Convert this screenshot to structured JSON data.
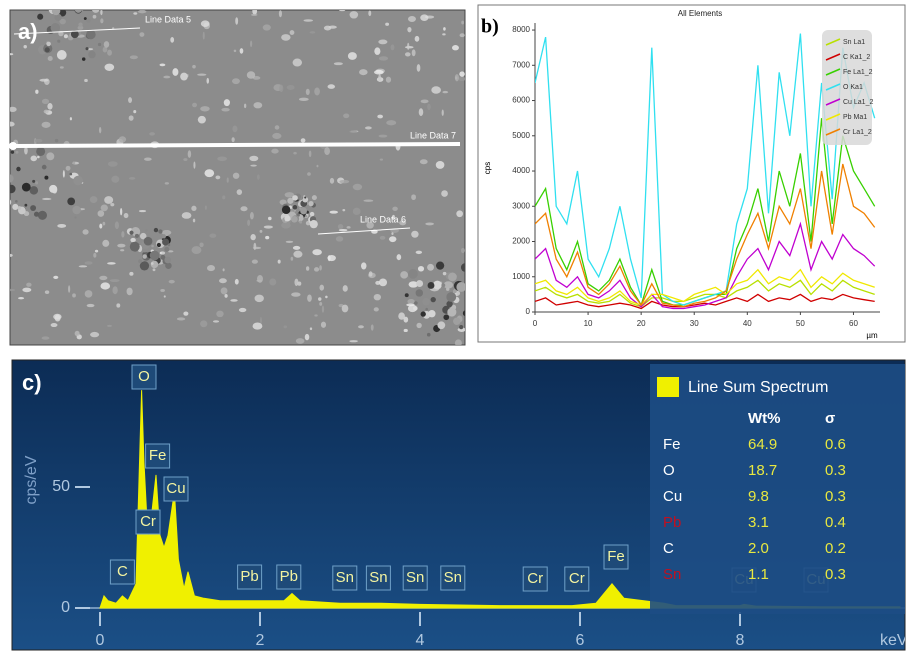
{
  "image_panel": {
    "label": "a)",
    "lines": [
      "Line Data 5",
      "Line Data 7",
      "Line Data 6"
    ]
  },
  "chart_data": [
    {
      "type": "line",
      "panel_label": "b)",
      "title": "All Elements",
      "y_label": "cps",
      "x_label": "µm",
      "x": [
        0,
        2,
        4,
        6,
        8,
        10,
        12,
        14,
        16,
        18,
        20,
        22,
        24,
        26,
        28,
        30,
        32,
        34,
        36,
        38,
        40,
        42,
        44,
        46,
        48,
        50,
        52,
        54,
        56,
        58,
        60,
        62,
        64
      ],
      "xlim": [
        0,
        65
      ],
      "xticks": [
        0,
        10,
        20,
        30,
        40,
        50,
        60
      ],
      "ylim": [
        0,
        8200
      ],
      "yticks": [
        0,
        1000,
        2000,
        3000,
        4000,
        5000,
        6000,
        7000,
        8000
      ],
      "series": [
        {
          "name": "Sn La1",
          "color": "#b8e000",
          "values": [
            600,
            700,
            500,
            400,
            500,
            300,
            250,
            300,
            500,
            250,
            150,
            400,
            400,
            300,
            300,
            400,
            500,
            500,
            400,
            600,
            700,
            900,
            600,
            800,
            700,
            900,
            500,
            800,
            600,
            900,
            700,
            600,
            500
          ]
        },
        {
          "name": "C Ka1_2",
          "color": "#d00000",
          "values": [
            300,
            400,
            200,
            250,
            300,
            200,
            150,
            200,
            250,
            200,
            100,
            300,
            200,
            150,
            150,
            200,
            250,
            200,
            300,
            400,
            300,
            500,
            300,
            400,
            350,
            500,
            300,
            400,
            350,
            500,
            400,
            350,
            300
          ]
        },
        {
          "name": "Fe La1_2",
          "color": "#38d000",
          "values": [
            3000,
            3500,
            1800,
            1200,
            2000,
            800,
            600,
            900,
            1500,
            700,
            200,
            1200,
            300,
            200,
            200,
            300,
            400,
            500,
            500,
            1800,
            2500,
            3500,
            2000,
            4000,
            3000,
            4500,
            2000,
            5500,
            2500,
            5000,
            4000,
            3500,
            3000
          ]
        },
        {
          "name": "O Ka1",
          "color": "#30e0f0",
          "values": [
            6500,
            7800,
            3000,
            2500,
            4000,
            1500,
            1000,
            1800,
            3000,
            1500,
            400,
            7500,
            500,
            300,
            200,
            300,
            400,
            500,
            600,
            2500,
            3500,
            7000,
            2800,
            6800,
            5000,
            7900,
            3000,
            6500,
            3200,
            7500,
            5800,
            6500,
            5500
          ]
        },
        {
          "name": "Cu La1_2",
          "color": "#c000d0",
          "values": [
            1500,
            1800,
            900,
            700,
            1000,
            500,
            400,
            600,
            900,
            400,
            150,
            500,
            150,
            100,
            100,
            150,
            200,
            300,
            400,
            1000,
            1500,
            1800,
            1200,
            2000,
            1600,
            2500,
            1200,
            2000,
            1500,
            2200,
            1800,
            1600,
            1300
          ]
        },
        {
          "name": "Pb Ma1",
          "color": "#f0e800",
          "values": [
            800,
            900,
            600,
            500,
            700,
            400,
            300,
            400,
            600,
            300,
            200,
            500,
            500,
            400,
            300,
            500,
            600,
            700,
            500,
            800,
            900,
            1200,
            800,
            1000,
            900,
            1200,
            700,
            1000,
            800,
            1100,
            900,
            800,
            700
          ]
        },
        {
          "name": "Cr La1_2",
          "color": "#f08000",
          "values": [
            2500,
            2800,
            1500,
            1000,
            1700,
            700,
            500,
            800,
            1300,
            600,
            200,
            800,
            250,
            200,
            150,
            250,
            300,
            400,
            600,
            1500,
            2200,
            2800,
            1800,
            3000,
            2500,
            3500,
            1800,
            4000,
            2200,
            4200,
            3000,
            2800,
            2400
          ]
        }
      ]
    },
    {
      "type": "area",
      "panel_label": "c)",
      "y_label": "cps/eV",
      "x_label": "keV",
      "color": "#f0f000",
      "x": [
        0,
        0.05,
        0.1,
        0.2,
        0.28,
        0.35,
        0.45,
        0.52,
        0.55,
        0.6,
        0.65,
        0.7,
        0.75,
        0.8,
        0.85,
        0.93,
        0.98,
        1.05,
        1.1,
        1.18,
        1.3,
        1.5,
        1.8,
        2.3,
        2.4,
        2.5,
        3,
        3.5,
        4,
        5,
        5.4,
        5.9,
        6.2,
        6.4,
        6.55,
        7.05,
        7.2,
        8,
        8.05,
        8.2,
        9,
        10
      ],
      "values": [
        0,
        5,
        3,
        2,
        5,
        3,
        10,
        90,
        60,
        28,
        40,
        55,
        30,
        25,
        30,
        48,
        20,
        8,
        15,
        5,
        4,
        3,
        3,
        3,
        6,
        3,
        2,
        2,
        1.5,
        1,
        1,
        1,
        2,
        10,
        4,
        2,
        1,
        1,
        1.5,
        0.8,
        0.5,
        0.5
      ],
      "xlim": [
        0,
        10
      ],
      "xticks": [
        0,
        2,
        4,
        6,
        8
      ],
      "ylim": [
        0,
        100
      ],
      "yticks": [
        0,
        50
      ],
      "annotations": [
        {
          "text": "O",
          "x": 0.55
        },
        {
          "text": "Fe",
          "x": 0.72
        },
        {
          "text": "Cu",
          "x": 0.95
        },
        {
          "text": "Cr",
          "x": 0.6
        },
        {
          "text": "C",
          "x": 0.28
        },
        {
          "text": "Pb",
          "x": 1.87
        },
        {
          "text": "Pb",
          "x": 2.36
        },
        {
          "text": "Sn",
          "x": 3.06
        },
        {
          "text": "Sn",
          "x": 3.48
        },
        {
          "text": "Sn",
          "x": 3.94
        },
        {
          "text": "Sn",
          "x": 4.41
        },
        {
          "text": "Cr",
          "x": 5.44
        },
        {
          "text": "Cr",
          "x": 5.96
        },
        {
          "text": "Fe",
          "x": 6.45
        },
        {
          "text": "Cu",
          "x": 8.05
        },
        {
          "text": "Cu",
          "x": 8.95
        }
      ]
    }
  ],
  "table": {
    "title": "Line Sum Spectrum",
    "legend_color": "#f0f000",
    "header": [
      "Wt%",
      "σ"
    ],
    "rows": [
      {
        "element": "Fe",
        "wt": "64.9",
        "sigma": "0.6",
        "color": "#ffffff"
      },
      {
        "element": "O",
        "wt": "18.7",
        "sigma": "0.3",
        "color": "#ffffff"
      },
      {
        "element": "Cu",
        "wt": "9.8",
        "sigma": "0.3",
        "color": "#ffffff"
      },
      {
        "element": "Pb",
        "wt": "3.1",
        "sigma": "0.4",
        "color": "#c01020"
      },
      {
        "element": "C",
        "wt": "2.0",
        "sigma": "0.2",
        "color": "#ffffff"
      },
      {
        "element": "Sn",
        "wt": "1.1",
        "sigma": "0.3",
        "color": "#c01020"
      }
    ]
  }
}
